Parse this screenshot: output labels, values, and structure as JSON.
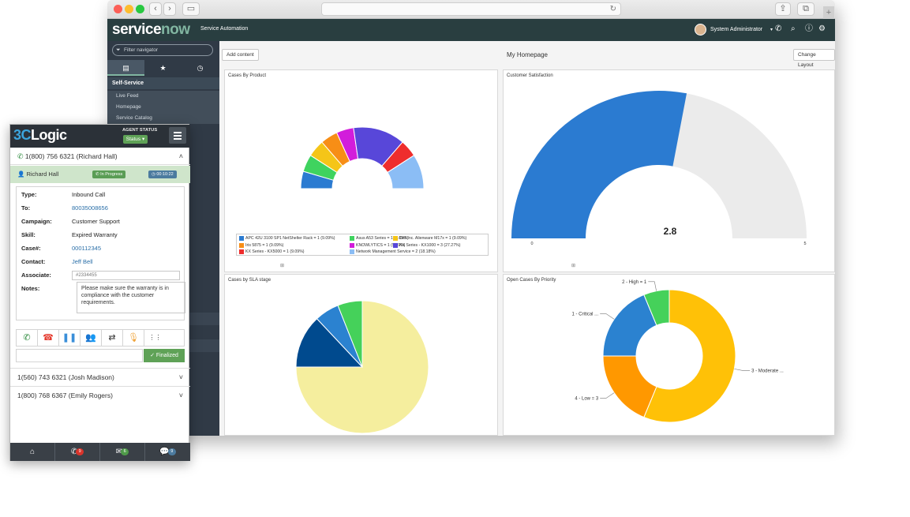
{
  "servicenow": {
    "logo_service": "service",
    "logo_now": "now",
    "product": "Service Automation",
    "user": "System Administrator",
    "filter_placeholder": "Filter navigator",
    "nav_section": "Self-Service",
    "nav_items": [
      "Live Feed",
      "Homepage",
      "Service Catalog"
    ]
  },
  "homepage": {
    "add_content": "Add content",
    "title": "My Homepage",
    "change_layout": "Change Layout"
  },
  "widgets": {
    "cases_by_product": "Cases By Product",
    "customer_satisfaction": "Customer Satisfaction",
    "cases_by_sla": "Cases by SLA stage",
    "open_cases_priority": "Open Cases By Priority"
  },
  "chart_data": [
    {
      "type": "pie",
      "title": "Cases By Product",
      "series": [
        {
          "name": "APC 42U 3100 SP1 NetShelter Rack = 1 (9.09%)",
          "value": 1,
          "color": "#2b7bd1"
        },
        {
          "name": "Asus A53 Series = 1 (9.09%)",
          "value": 1,
          "color": "#3fd35f"
        },
        {
          "name": "Dell Inc. Alienware M17x = 1 (9.09%)",
          "value": 1,
          "color": "#f5c518"
        },
        {
          "name": "Iris 5875 = 1 (9.09%)",
          "value": 1,
          "color": "#f78e16"
        },
        {
          "name": "KNOWLYTICS = 1 (9.09%)",
          "value": 1,
          "color": "#d21ddb"
        },
        {
          "name": "KX Series - KX1000 = 3 (27.27%)",
          "value": 3,
          "color": "#5847d9"
        },
        {
          "name": "KX Series - KX5000 = 1 (9.09%)",
          "value": 1,
          "color": "#ee2d2d"
        },
        {
          "name": "Network Management Service = 2 (18.18%)",
          "value": 2,
          "color": "#8bbdf5"
        }
      ]
    },
    {
      "type": "gauge",
      "title": "Customer Satisfaction",
      "value": 2.8,
      "value_label": "2.8",
      "min_label": "0",
      "max_label": "5",
      "min": 0,
      "max": 5,
      "fill_color": "#2b7bd1",
      "track_color": "#ebebeb"
    },
    {
      "type": "pie",
      "title": "Cases by SLA stage",
      "series": [
        {
          "value": 75,
          "color": "#f5ee9e"
        },
        {
          "value": 13,
          "color": "#004a8e"
        },
        {
          "value": 6,
          "color": "#2b82d0"
        },
        {
          "value": 6,
          "color": "#45d15a"
        }
      ]
    },
    {
      "type": "pie",
      "title": "Open Cases By Priority",
      "series": [
        {
          "name": "3 - Moderate ...",
          "value": 9,
          "color": "#ffc107"
        },
        {
          "name": "4 - Low = 3",
          "value": 3,
          "color": "#ff9800"
        },
        {
          "name": "1 - Critical ...",
          "value": 3,
          "color": "#2b82d0"
        },
        {
          "name": "2 - High = 1",
          "value": 1,
          "color": "#45d15a"
        }
      ]
    }
  ],
  "cl": {
    "logo_3c": "3C",
    "logo_rest": "Logic",
    "agent_status_label": "AGENT STATUS",
    "status": "Status",
    "active_call": "1(800) 756 6321 (Richard Hall)",
    "caller": "Richard Hall",
    "call_state": "In Progress",
    "timer": "00:10:22",
    "fields": [
      {
        "label": "Type:",
        "value": "Inbound Call",
        "link": false
      },
      {
        "label": "To:",
        "value": "80035008656",
        "link": true
      },
      {
        "label": "Campaign:",
        "value": "Customer Support",
        "link": false
      },
      {
        "label": "Skill:",
        "value": "Expired Warranty",
        "link": false
      },
      {
        "label": "Case#:",
        "value": "000112345",
        "link": true
      },
      {
        "label": "Contact:",
        "value": "Jeff Bell",
        "link": true
      }
    ],
    "associate_label": "Associate:",
    "associate_value": "#2334455",
    "notes_label": "Notes:",
    "notes": "Please make sure the warranty is in compliance with the customer requirements.",
    "finalized": "Finalized",
    "other_calls": [
      "1(560) 743 6321 (Josh Madison)",
      "1(800) 768 6367 (Emily Rogers)"
    ],
    "footer_badges": {
      "calls": "9",
      "messages": "6",
      "chats": "9"
    }
  }
}
